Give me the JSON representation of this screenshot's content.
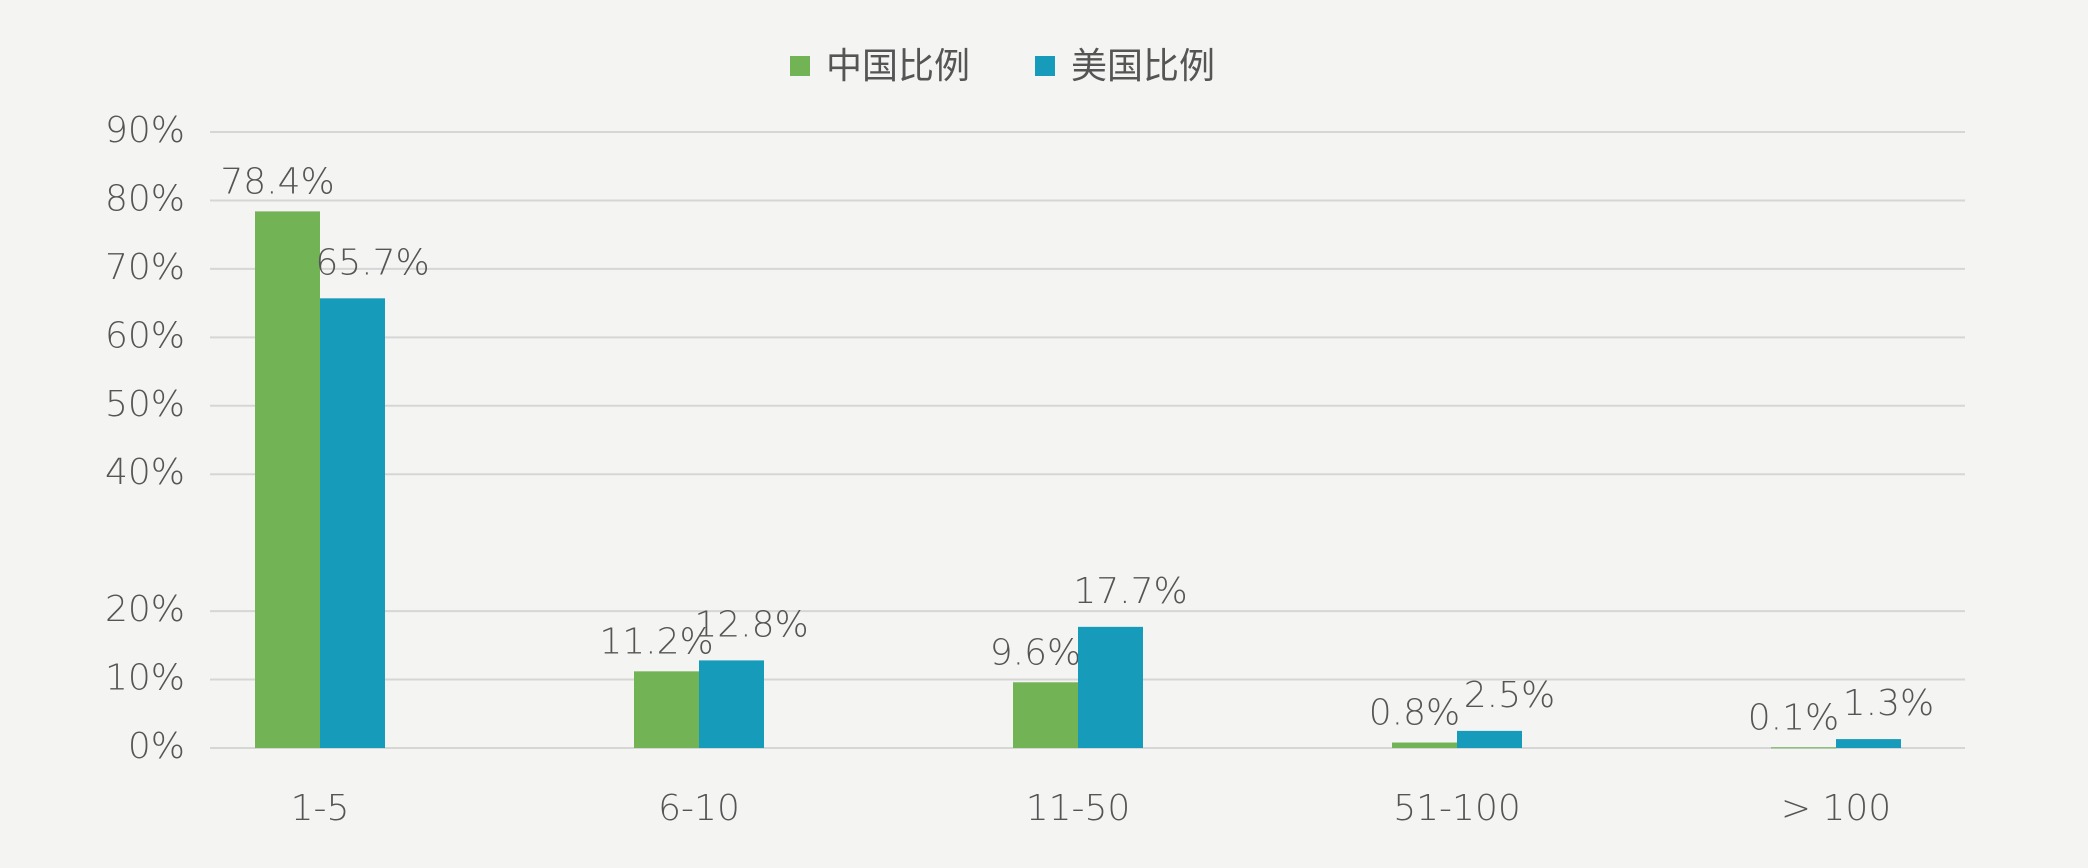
{
  "chart_data": {
    "type": "bar",
    "categories": [
      "1-5",
      "6-10",
      "11-50",
      "51-100",
      "> 100"
    ],
    "series": [
      {
        "name": "中国比例",
        "color": "#72b355",
        "values": [
          78.4,
          11.2,
          9.6,
          0.8,
          0.1
        ],
        "value_labels": [
          "78.4%",
          "11.2%",
          "9.6%",
          "0.8%",
          "0.1%"
        ]
      },
      {
        "name": "美国比例",
        "color": "#169bbb",
        "values": [
          65.7,
          12.8,
          17.7,
          2.5,
          1.3
        ],
        "value_labels": [
          "65.7%",
          "12.8%",
          "17.7%",
          "2.5%",
          "1.3%"
        ]
      }
    ],
    "ylim": [
      0,
      90
    ],
    "yticks": [
      {
        "value": 0,
        "label": "0%"
      },
      {
        "value": 10,
        "label": "10%"
      },
      {
        "value": 20,
        "label": "20%"
      },
      {
        "value": 40,
        "label": "40%"
      },
      {
        "value": 50,
        "label": "50%"
      },
      {
        "value": 60,
        "label": "60%"
      },
      {
        "value": 70,
        "label": "70%"
      },
      {
        "value": 80,
        "label": "80%"
      },
      {
        "value": 90,
        "label": "90%"
      }
    ],
    "grid": true,
    "legend": "top"
  }
}
